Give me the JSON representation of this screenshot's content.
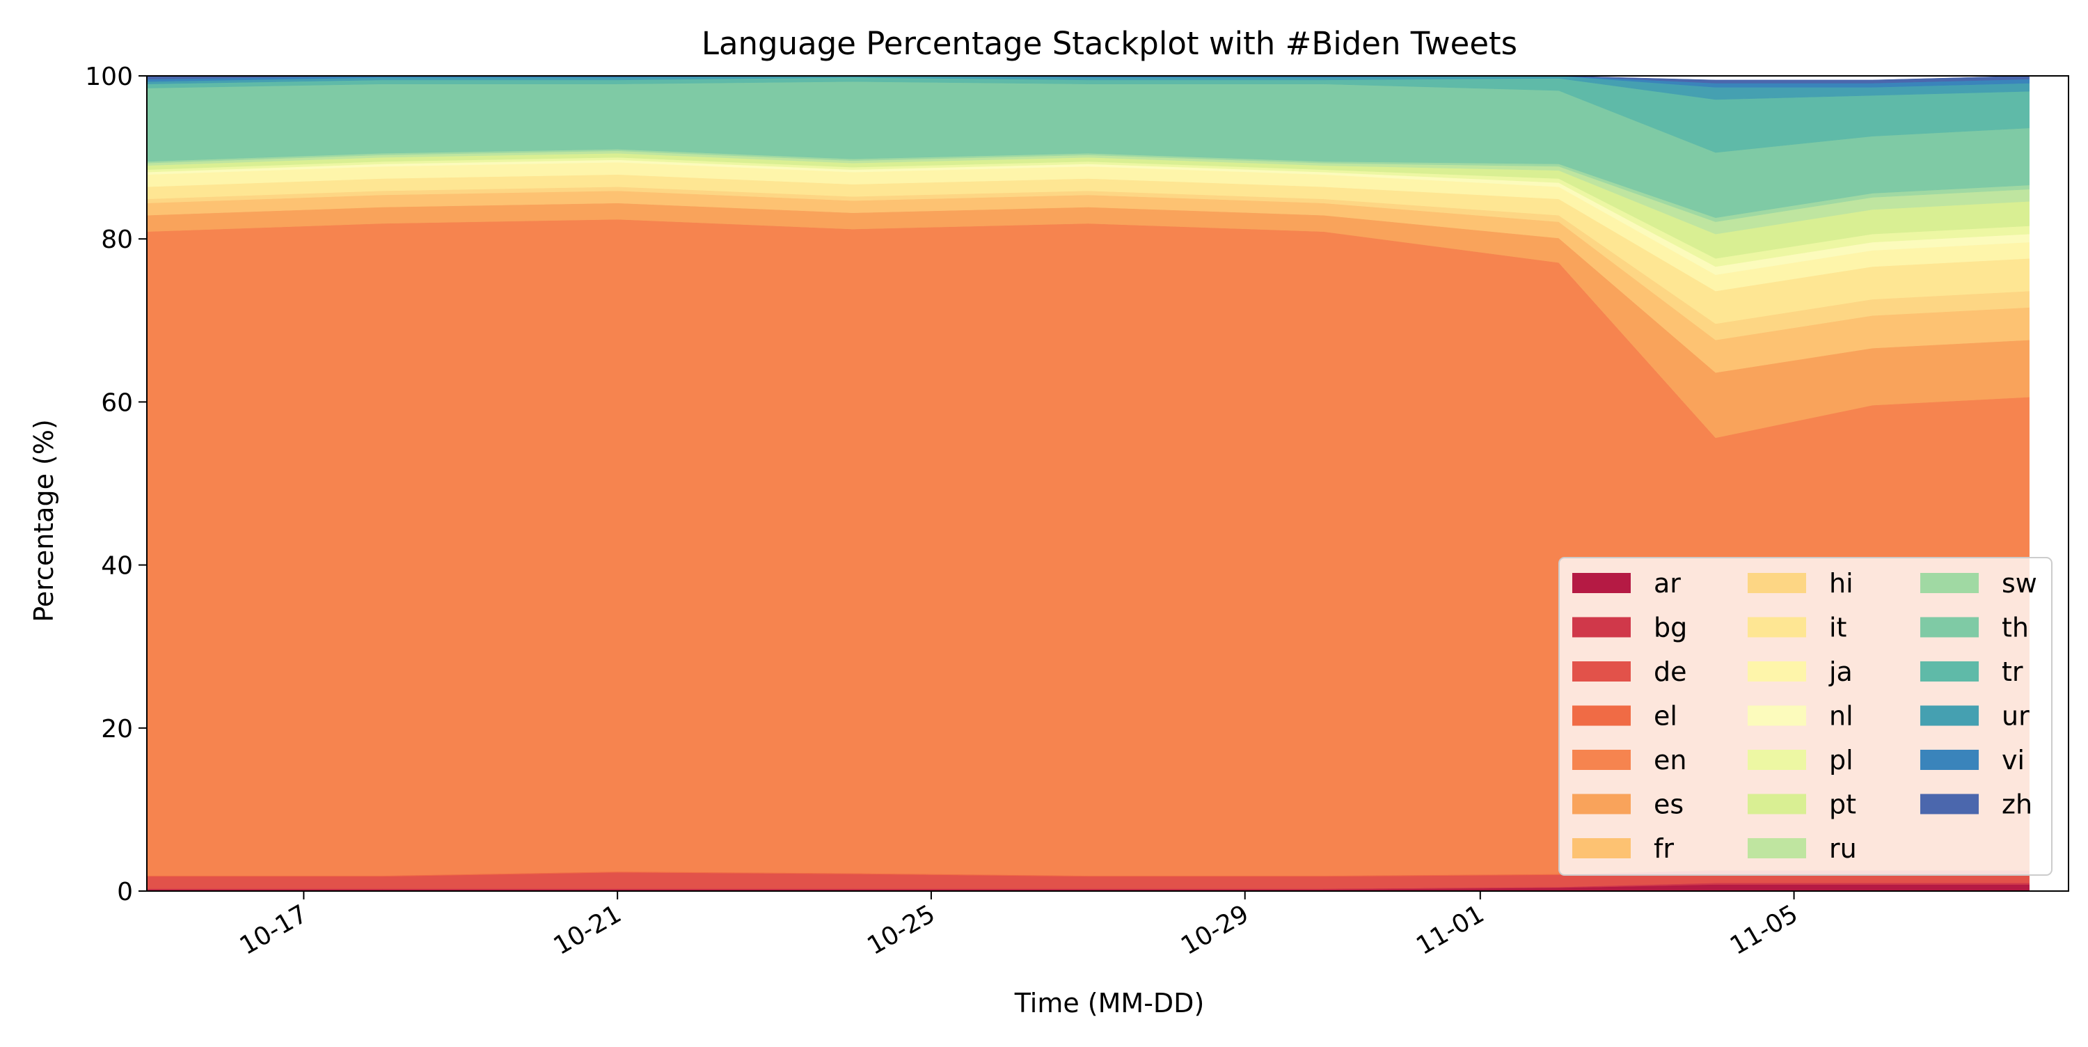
{
  "chart_data": {
    "type": "area",
    "stacked": true,
    "title": "Language Percentage Stackplot with #Biden Tweets",
    "xlabel": "Time (MM-DD)",
    "ylabel": "Percentage (%)",
    "xlim": [
      "2020-10-15",
      "2020-11-08T12:00"
    ],
    "ylim": [
      0,
      100
    ],
    "y_ticks": [
      0,
      20,
      40,
      60,
      80,
      100
    ],
    "x_ticks": [
      {
        "date": "2020-10-17",
        "label": "10-17"
      },
      {
        "date": "2020-10-21",
        "label": "10-21"
      },
      {
        "date": "2020-10-25",
        "label": "10-25"
      },
      {
        "date": "2020-10-29",
        "label": "10-29"
      },
      {
        "date": "2020-11-01",
        "label": "11-01"
      },
      {
        "date": "2020-11-05",
        "label": "11-05"
      }
    ],
    "legend_position": "lower-right",
    "legend_columns": 3,
    "x": [
      "2020-10-15",
      "2020-10-18",
      "2020-10-21",
      "2020-10-24",
      "2020-10-27",
      "2020-10-30",
      "2020-11-02",
      "2020-11-04",
      "2020-11-06",
      "2020-11-08"
    ],
    "series": [
      {
        "name": "ar",
        "color": "#b51a44",
        "values": [
          0.2,
          0.2,
          0.2,
          0.2,
          0.2,
          0.2,
          0.4,
          0.8,
          0.8,
          0.8
        ]
      },
      {
        "name": "bg",
        "color": "#d0384a",
        "values": [
          0.1,
          0.1,
          0.1,
          0.1,
          0.1,
          0.1,
          0.1,
          0.2,
          0.2,
          0.2
        ]
      },
      {
        "name": "de",
        "color": "#e2524a",
        "values": [
          1.5,
          1.5,
          2.0,
          1.8,
          1.5,
          1.5,
          1.5,
          1.5,
          1.5,
          1.5
        ]
      },
      {
        "name": "el",
        "color": "#f06b45",
        "values": [
          0.1,
          0.1,
          0.1,
          0.1,
          0.1,
          0.1,
          0.1,
          0.1,
          0.1,
          0.1
        ]
      },
      {
        "name": "en",
        "color": "#f6844f",
        "values": [
          79,
          80,
          80,
          79,
          80,
          79,
          75,
          53,
          57,
          58
        ]
      },
      {
        "name": "es",
        "color": "#f9a35b",
        "values": [
          2.0,
          2.0,
          2.0,
          2.0,
          2.0,
          2.0,
          3.0,
          8.0,
          7.0,
          7.0
        ]
      },
      {
        "name": "fr",
        "color": "#fdc272",
        "values": [
          1.5,
          1.5,
          1.5,
          1.5,
          1.5,
          1.5,
          2.0,
          4.0,
          4.0,
          4.0
        ]
      },
      {
        "name": "hi",
        "color": "#fdd684",
        "values": [
          0.5,
          0.5,
          0.5,
          0.5,
          0.5,
          0.5,
          0.8,
          2.0,
          2.0,
          2.0
        ]
      },
      {
        "name": "it",
        "color": "#fee693",
        "values": [
          1.5,
          1.5,
          1.5,
          1.5,
          1.5,
          1.5,
          2.0,
          4.0,
          4.0,
          4.0
        ]
      },
      {
        "name": "ja",
        "color": "#fef5aa",
        "values": [
          1.5,
          1.5,
          1.5,
          1.5,
          1.5,
          1.5,
          1.5,
          2.0,
          2.0,
          2.0
        ]
      },
      {
        "name": "nl",
        "color": "#fcfbbc",
        "values": [
          0.3,
          0.3,
          0.3,
          0.3,
          0.3,
          0.3,
          0.5,
          1.0,
          1.0,
          1.0
        ]
      },
      {
        "name": "pl",
        "color": "#edf7a3",
        "values": [
          0.3,
          0.3,
          0.3,
          0.3,
          0.3,
          0.3,
          0.5,
          1.0,
          1.0,
          1.0
        ]
      },
      {
        "name": "pt",
        "color": "#d9ef93",
        "values": [
          0.5,
          0.5,
          0.5,
          0.5,
          0.5,
          0.5,
          1.0,
          3.0,
          3.0,
          3.0
        ]
      },
      {
        "name": "ru",
        "color": "#bfe5a0",
        "values": [
          0.3,
          0.3,
          0.3,
          0.3,
          0.3,
          0.3,
          0.5,
          1.5,
          1.5,
          1.5
        ]
      },
      {
        "name": "sw",
        "color": "#a0d9a3",
        "values": [
          0.2,
          0.2,
          0.2,
          0.2,
          0.2,
          0.2,
          0.3,
          0.5,
          0.5,
          0.5
        ]
      },
      {
        "name": "th",
        "color": "#7fcaa5",
        "values": [
          9.0,
          8.5,
          8.0,
          9.5,
          8.5,
          9.5,
          9.0,
          8.0,
          7.0,
          7.0
        ]
      },
      {
        "name": "tr",
        "color": "#5fbaa8",
        "values": [
          0.5,
          0.5,
          0.5,
          0.5,
          0.5,
          0.5,
          1.5,
          6.5,
          5.0,
          4.5
        ]
      },
      {
        "name": "ur",
        "color": "#45a0b1",
        "values": [
          0.3,
          0.3,
          0.3,
          0.3,
          0.3,
          0.3,
          0.5,
          1.5,
          1.0,
          1.0
        ]
      },
      {
        "name": "vi",
        "color": "#3a84bb",
        "values": [
          0.3,
          0.3,
          0.3,
          0.3,
          0.3,
          0.3,
          0.3,
          0.5,
          0.5,
          0.5
        ]
      },
      {
        "name": "zh",
        "color": "#4b67ad",
        "values": [
          0.4,
          0.4,
          0.4,
          0.4,
          0.4,
          0.4,
          0.4,
          0.4,
          0.4,
          0.4
        ]
      }
    ]
  }
}
